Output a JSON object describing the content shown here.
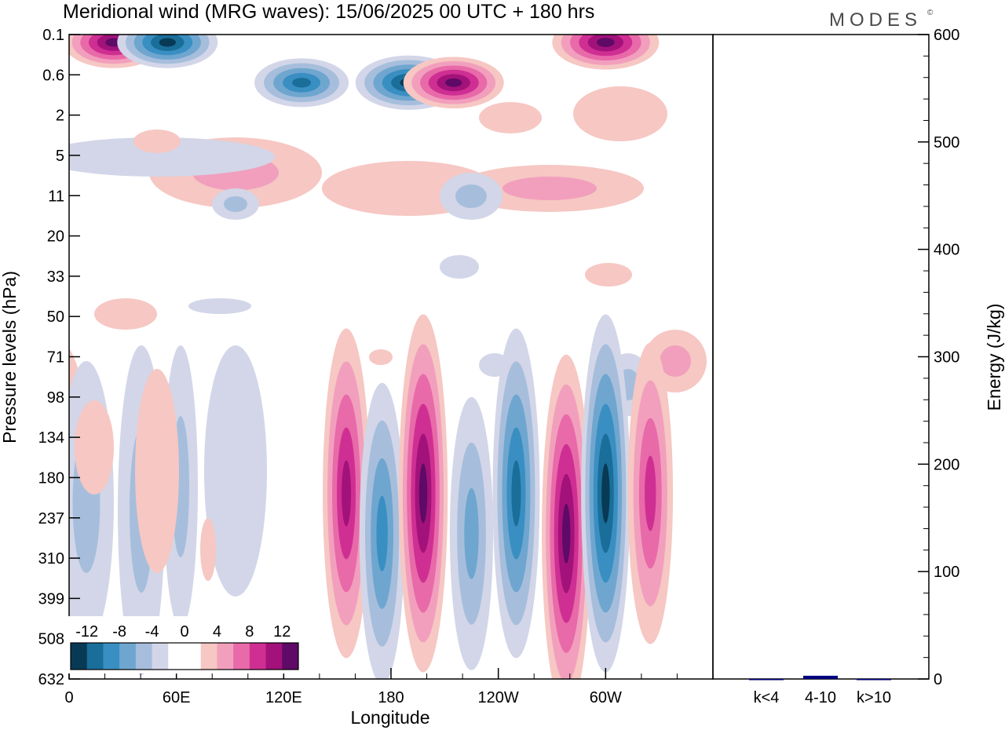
{
  "title": "Meridional wind (MRG waves):  15/06/2025  00 UTC  + 180 hrs",
  "brand": "MODES",
  "brand_mark": "©",
  "chart_data": [
    {
      "type": "heatmap",
      "variable": "Meridional wind",
      "xlabel": "Longitude",
      "ylabel": "Pressure levels (hPa)",
      "x_ticks": [
        "0",
        "60E",
        "120E",
        "180",
        "120W",
        "60W"
      ],
      "y_ticks": [
        "0.1",
        "0.6",
        "2",
        "5",
        "11",
        "20",
        "33",
        "50",
        "71",
        "98",
        "134",
        "180",
        "237",
        "310",
        "399",
        "508",
        "632"
      ],
      "colorbar": {
        "labels": [
          "-12",
          "-8",
          "-4",
          "0",
          "4",
          "8",
          "12"
        ],
        "colors": [
          "#083a55",
          "#1a6e9a",
          "#3a8fc2",
          "#6fa6cf",
          "#a6bedc",
          "#d2d6e8",
          "#ffffff",
          "#ffffff",
          "#f6c7c3",
          "#f29fbd",
          "#e86aa9",
          "#cf2f92",
          "#a2127a",
          "#5e0a66"
        ]
      },
      "features": [
        {
          "lon": 155,
          "level": "180",
          "value": 10
        },
        {
          "lon": 175,
          "level": "237",
          "value": -8
        },
        {
          "lon": 198,
          "level": "180",
          "value": 12
        },
        {
          "lon": 225,
          "level": "237",
          "value": -6
        },
        {
          "lon": 250,
          "level": "180",
          "value": -10
        },
        {
          "lon": 278,
          "level": "237",
          "value": 12
        },
        {
          "lon": 300,
          "level": "180",
          "value": -12
        },
        {
          "lon": 325,
          "level": "180",
          "value": 8
        },
        {
          "lon": 25,
          "level": "0.1",
          "value": 12
        },
        {
          "lon": 55,
          "level": "0.1",
          "value": -12
        },
        {
          "lon": 130,
          "level": "0.6",
          "value": -10
        },
        {
          "lon": 190,
          "level": "0.6",
          "value": -14
        },
        {
          "lon": 215,
          "level": "0.6",
          "value": 12
        },
        {
          "lon": 300,
          "level": "0.1",
          "value": 14
        }
      ]
    },
    {
      "type": "bar",
      "ylabel": "Energy (J/kg)",
      "categories": [
        "k<4",
        "4-10",
        "k>10"
      ],
      "values": [
        0,
        3,
        0
      ],
      "ylim": [
        0,
        600
      ],
      "y_ticks": [
        "0",
        "100",
        "200",
        "300",
        "400",
        "500",
        "600"
      ],
      "colors": [
        "#000080",
        "#000080",
        "#000080"
      ]
    }
  ]
}
